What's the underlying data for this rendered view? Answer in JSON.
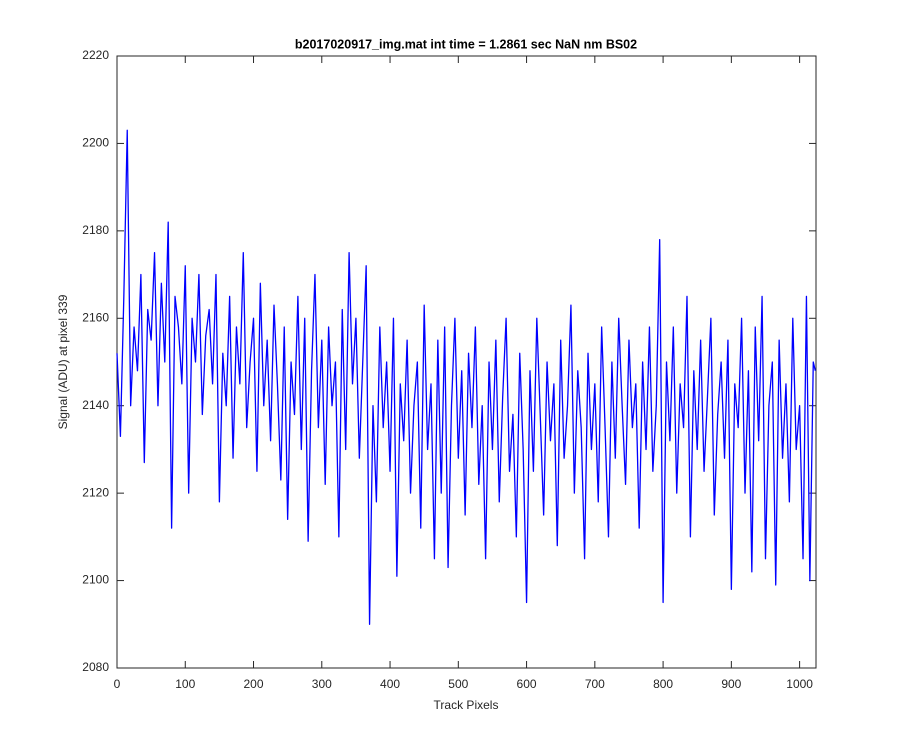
{
  "chart_data": {
    "type": "line",
    "title": "b2017020917_img.mat int time = 1.2861 sec  NaN nm BS02",
    "x_label": "Track Pixels",
    "y_label": "Signal (ADU) at pixel 339",
    "xlim": [
      0,
      1024
    ],
    "ylim": [
      2080,
      2220
    ],
    "xticks": [
      0,
      100,
      200,
      300,
      400,
      500,
      600,
      700,
      800,
      900,
      1000
    ],
    "yticks": [
      2080,
      2100,
      2120,
      2140,
      2160,
      2180,
      2200,
      2220
    ],
    "grid": false,
    "x": [
      0,
      5,
      10,
      15,
      20,
      25,
      30,
      35,
      40,
      45,
      50,
      55,
      60,
      65,
      70,
      75,
      80,
      85,
      90,
      95,
      100,
      105,
      110,
      115,
      120,
      125,
      130,
      135,
      140,
      145,
      150,
      155,
      160,
      165,
      170,
      175,
      180,
      185,
      190,
      195,
      200,
      205,
      210,
      215,
      220,
      225,
      230,
      235,
      240,
      245,
      250,
      255,
      260,
      265,
      270,
      275,
      280,
      285,
      290,
      295,
      300,
      305,
      310,
      315,
      320,
      325,
      330,
      335,
      340,
      345,
      350,
      355,
      360,
      365,
      370,
      375,
      380,
      385,
      390,
      395,
      400,
      405,
      410,
      415,
      420,
      425,
      430,
      435,
      440,
      445,
      450,
      455,
      460,
      465,
      470,
      475,
      480,
      485,
      490,
      495,
      500,
      505,
      510,
      515,
      520,
      525,
      530,
      535,
      540,
      545,
      550,
      555,
      560,
      565,
      570,
      575,
      580,
      585,
      590,
      595,
      600,
      605,
      610,
      615,
      620,
      625,
      630,
      635,
      640,
      645,
      650,
      655,
      660,
      665,
      670,
      675,
      680,
      685,
      690,
      695,
      700,
      705,
      710,
      715,
      720,
      725,
      730,
      735,
      740,
      745,
      750,
      755,
      760,
      765,
      770,
      775,
      780,
      785,
      790,
      795,
      800,
      805,
      810,
      815,
      820,
      825,
      830,
      835,
      840,
      845,
      850,
      855,
      860,
      865,
      870,
      875,
      880,
      885,
      890,
      895,
      900,
      905,
      910,
      915,
      920,
      925,
      930,
      935,
      940,
      945,
      950,
      955,
      960,
      965,
      970,
      975,
      980,
      985,
      990,
      995,
      1000,
      1005,
      1010,
      1015,
      1020,
      1023
    ],
    "series": [
      {
        "color": "#0000ff",
        "values": [
          2152,
          2133,
          2165,
          2203,
          2140,
          2158,
          2148,
          2170,
          2127,
          2162,
          2155,
          2175,
          2140,
          2168,
          2150,
          2182,
          2112,
          2165,
          2158,
          2145,
          2172,
          2120,
          2160,
          2150,
          2170,
          2138,
          2156,
          2162,
          2145,
          2170,
          2118,
          2152,
          2140,
          2165,
          2128,
          2158,
          2145,
          2175,
          2135,
          2150,
          2160,
          2125,
          2168,
          2140,
          2155,
          2132,
          2163,
          2145,
          2123,
          2158,
          2114,
          2150,
          2138,
          2165,
          2130,
          2160,
          2109,
          2148,
          2170,
          2135,
          2155,
          2122,
          2158,
          2140,
          2150,
          2110,
          2162,
          2130,
          2175,
          2145,
          2160,
          2128,
          2150,
          2172,
          2090,
          2140,
          2118,
          2158,
          2135,
          2150,
          2125,
          2160,
          2101,
          2145,
          2132,
          2155,
          2120,
          2140,
          2150,
          2112,
          2163,
          2130,
          2145,
          2105,
          2155,
          2120,
          2158,
          2103,
          2140,
          2160,
          2128,
          2148,
          2115,
          2152,
          2135,
          2158,
          2122,
          2140,
          2105,
          2150,
          2130,
          2155,
          2118,
          2142,
          2160,
          2125,
          2138,
          2110,
          2152,
          2130,
          2095,
          2148,
          2125,
          2160,
          2138,
          2115,
          2150,
          2132,
          2145,
          2108,
          2155,
          2128,
          2140,
          2163,
          2120,
          2148,
          2135,
          2105,
          2152,
          2130,
          2145,
          2118,
          2158,
          2135,
          2110,
          2150,
          2128,
          2160,
          2140,
          2122,
          2155,
          2135,
          2145,
          2112,
          2150,
          2130,
          2158,
          2125,
          2140,
          2178,
          2095,
          2150,
          2132,
          2158,
          2120,
          2145,
          2135,
          2165,
          2110,
          2148,
          2130,
          2155,
          2125,
          2142,
          2160,
          2115,
          2138,
          2150,
          2128,
          2155,
          2098,
          2145,
          2135,
          2160,
          2120,
          2148,
          2102,
          2158,
          2132,
          2165,
          2105,
          2140,
          2150,
          2099,
          2155,
          2128,
          2145,
          2118,
          2160,
          2130,
          2140,
          2105,
          2165,
          2100,
          2150,
          2148
        ]
      }
    ]
  }
}
